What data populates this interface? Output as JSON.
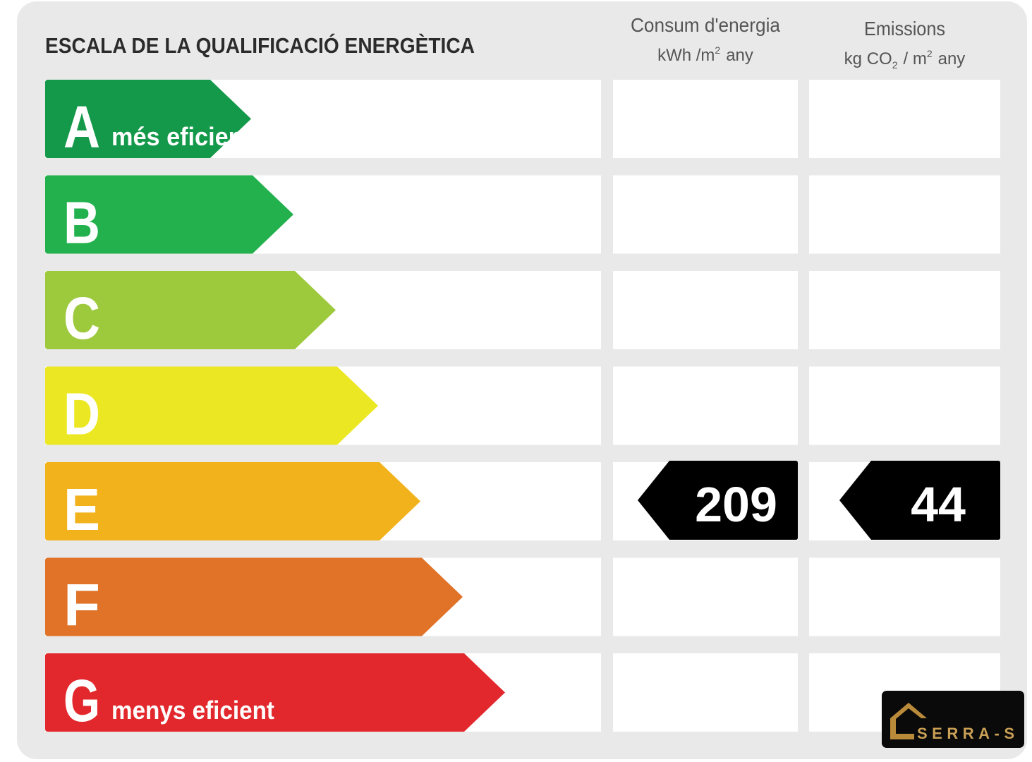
{
  "title": "ESCALA DE LA QUALIFICACIÓ ENERGÈTICA",
  "columns": [
    {
      "title": "Consum d'energia",
      "unit": [
        "kWh /m",
        "2",
        "any"
      ]
    },
    {
      "title": "Emissions",
      "unit": [
        "kg CO",
        "2",
        "/ m",
        "2",
        "any"
      ]
    }
  ],
  "rows": [
    {
      "letter": "A",
      "note": "més eficient",
      "color": "#14994a"
    },
    {
      "letter": "B",
      "color": "#22b14c"
    },
    {
      "letter": "C",
      "color": "#9dc93c"
    },
    {
      "letter": "D",
      "color": "#ebe823"
    },
    {
      "letter": "E",
      "color": "#f2b21b",
      "values": [
        209,
        44
      ]
    },
    {
      "letter": "F",
      "color": "#e07328"
    },
    {
      "letter": "G",
      "note": "menys eficient",
      "color": "#e2282c"
    }
  ],
  "logo": "SERRA-S"
}
